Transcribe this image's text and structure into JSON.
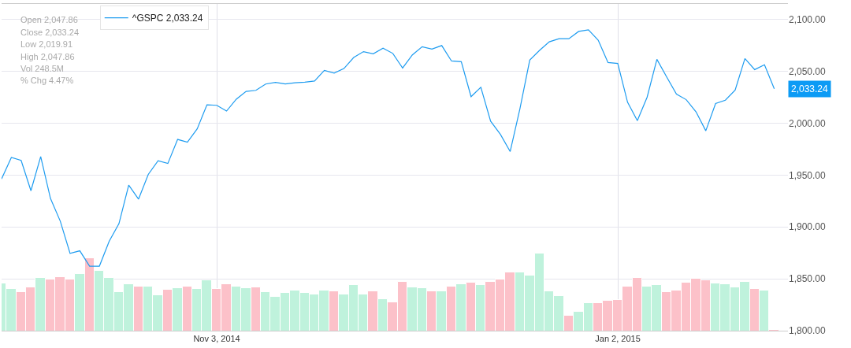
{
  "chart_data": {
    "type": "line",
    "categories": [
      null,
      null,
      null,
      null,
      null,
      null,
      null,
      null,
      null,
      null,
      null,
      null,
      null,
      null,
      null,
      null,
      null,
      null,
      null,
      null,
      null,
      null,
      "Nov 3, 2014",
      null,
      null,
      null,
      null,
      null,
      null,
      null,
      null,
      null,
      null,
      null,
      null,
      null,
      null,
      null,
      null,
      null,
      null,
      null,
      null,
      null,
      null,
      null,
      null,
      null,
      null,
      null,
      null,
      null,
      null,
      null,
      null,
      null,
      null,
      null,
      null,
      null,
      null,
      null,
      null,
      "Jan 2, 2015",
      null,
      null,
      null,
      null,
      null,
      null,
      null,
      null,
      null,
      null,
      null,
      null,
      null,
      null,
      null,
      null
    ],
    "series": [
      {
        "type": "bar",
        "colors": [
          "#bff2dc",
          "#bff2dc",
          "#fcc1c9",
          "#fcc1c9",
          "#bff2dc",
          "#fcc1c9",
          "#fcc1c9",
          "#fcc1c9",
          "#bff2dc",
          "#fcc1c9",
          "#bff2dc",
          "#bff2dc",
          "#bff2dc",
          "#bff2dc",
          "#fcc1c9",
          "#bff2dc",
          "#bff2dc",
          "#fcc1c9",
          "#bff2dc",
          "#fcc1c9",
          "#bff2dc",
          "#bff2dc",
          "#fcc1c9",
          "#fcc1c9",
          "#bff2dc",
          "#bff2dc",
          "#fcc1c9",
          "#bff2dc",
          "#bff2dc",
          "#bff2dc",
          "#bff2dc",
          "#bff2dc",
          "#bff2dc",
          "#bff2dc",
          "#fcc1c9",
          "#bff2dc",
          "#bff2dc",
          "#bff2dc",
          "#fcc1c9",
          "#bff2dc",
          "#fcc1c9",
          "#fcc1c9",
          "#bff2dc",
          "#bff2dc",
          "#fcc1c9",
          "#bff2dc",
          "#fcc1c9",
          "#bff2dc",
          "#fcc1c9",
          "#bff2dc",
          "#fcc1c9",
          "#fcc1c9",
          "#fcc1c9",
          "#bff2dc",
          "#bff2dc",
          "#bff2dc",
          "#bff2dc",
          "#bff2dc",
          "#fcc1c9",
          "#bff2dc",
          "#bff2dc",
          "#fcc1c9",
          "#fcc1c9",
          "#fcc1c9",
          "#fcc1c9",
          "#fcc1c9",
          "#bff2dc",
          "#bff2dc",
          "#fcc1c9",
          "#fcc1c9",
          "#fcc1c9",
          "#fcc1c9",
          "#fcc1c9",
          "#bff2dc",
          "#bff2dc",
          "#bff2dc",
          "#bff2dc",
          "#fcc1c9",
          "#bff2dc",
          "#fcc1c9"
        ],
        "values": [
          1845.5,
          1840,
          1837.5,
          1841.5,
          1850.6,
          1849,
          1851.6,
          1849,
          1854.9,
          1870,
          1857.9,
          1850.8,
          1837.2,
          1845,
          1842.5,
          1842.7,
          1834.4,
          1839.7,
          1841,
          1842.2,
          1840.2,
          1848.5,
          1840.2,
          1844.8,
          1842.5,
          1841.3,
          1841.8,
          1837,
          1832.9,
          1836.4,
          1839,
          1836.2,
          1835.2,
          1838.5,
          1838.3,
          1835,
          1844.3,
          1835,
          1838.3,
          1830.4,
          1827.6,
          1847.1,
          1841.5,
          1840.8,
          1838,
          1838.3,
          1842.7,
          1844.8,
          1846.3,
          1844,
          1846.8,
          1849.3,
          1856.3,
          1856.1,
          1853.4,
          1874.3,
          1837.7,
          1833.7,
          1814.5,
          1818.3,
          1826.8,
          1826.6,
          1828.6,
          1829.9,
          1842.7,
          1850.6,
          1842.7,
          1844.3,
          1837.5,
          1838.7,
          1846.6,
          1849.9,
          1848.3,
          1845.8,
          1844.5,
          1842,
          1847.1,
          1840.2,
          1838.7,
          1800.9
        ]
      },
      {
        "name": "^GSPC 2,033.24",
        "color": "#1e9cf0",
        "values": [
          1946.3,
          1967,
          1964.1,
          1934.9,
          1967.8,
          1927.5,
          1905.6,
          1874.6,
          1877,
          1862.2,
          1862.2,
          1886.1,
          1903.2,
          1940.3,
          1926.8,
          1950.7,
          1963.9,
          1961.2,
          1984.4,
          1981.7,
          1994.6,
          2017.8,
          2017.3,
          2011.7,
          2023.2,
          2030.7,
          2031.7,
          2037.8,
          2039.3,
          2037.8,
          2039,
          2039.5,
          2040.7,
          2051,
          2048.3,
          2052.7,
          2063.4,
          2069,
          2066.9,
          2072.4,
          2067.3,
          2053.2,
          2065.9,
          2073.7,
          2071.5,
          2074.9,
          2060,
          2059.3,
          2025.6,
          2034.7,
          2002,
          1989.3,
          1972.7,
          2014.2,
          2060.9,
          2070.2,
          2078.5,
          2081.5,
          2081.5,
          2088.5,
          2090,
          2080,
          2058.5,
          2057.6,
          2020.2,
          2002.5,
          2025.1,
          2061.6,
          2044.6,
          2028.1,
          2022.7,
          2011,
          1992.7,
          2019,
          2022.2,
          2032,
          2062.3,
          2051.7,
          2056.3,
          2033.2
        ]
      }
    ],
    "ylim": [
      1800,
      2115
    ],
    "yticks": [
      {
        "value": 1800,
        "label": "1,800.00"
      },
      {
        "value": 1850,
        "label": "1,850.00"
      },
      {
        "value": 1900,
        "label": "1,900.00"
      },
      {
        "value": 1950,
        "label": "1,950.00"
      },
      {
        "value": 2000,
        "label": "2,000.00"
      },
      {
        "value": 2050,
        "label": "2,050.00"
      },
      {
        "value": 2100,
        "label": "2,100.00"
      }
    ],
    "grid": true,
    "legend": "top left",
    "marker": "none",
    "annotations": [
      "Open 2,047.86",
      "Close 2,033.24",
      "Low 2,019.91",
      "High 2,047.86",
      "Vol 248.5M",
      "% Chg 4.47%",
      "2,033.24"
    ]
  }
}
